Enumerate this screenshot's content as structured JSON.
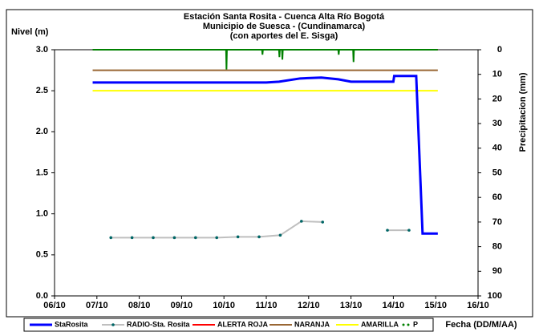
{
  "chart_data": {
    "type": "line",
    "title": [
      "Estación Santa Rosita - Cuenca Alta Río Bogotá",
      "Municipio de Suesca - (Cundinamarca)",
      "(con aportes del  E. Sisga)"
    ],
    "y_label": "Nivel (m)",
    "y2_label": "Precipitacion (mm)",
    "x_label": "Fecha (DD/M/AA)",
    "xlim": [
      0,
      10
    ],
    "xticks": [
      {
        "value": 0,
        "label": "06/10"
      },
      {
        "value": 1,
        "label": "07/10"
      },
      {
        "value": 2,
        "label": "08/10"
      },
      {
        "value": 3,
        "label": "09/10"
      },
      {
        "value": 4,
        "label": "10/10"
      },
      {
        "value": 5,
        "label": "11/10"
      },
      {
        "value": 6,
        "label": "12/10"
      },
      {
        "value": 7,
        "label": "13/10"
      },
      {
        "value": 8,
        "label": "14/10"
      },
      {
        "value": 9,
        "label": "15/10"
      },
      {
        "value": 10,
        "label": "16/10"
      }
    ],
    "ylim": [
      0,
      3
    ],
    "yticks": [
      {
        "value": 0,
        "label": "0.0"
      },
      {
        "value": 0.5,
        "label": "0.5"
      },
      {
        "value": 1,
        "label": "1.0"
      },
      {
        "value": 1.5,
        "label": "1.5"
      },
      {
        "value": 2,
        "label": "2.0"
      },
      {
        "value": 2.5,
        "label": "2.5"
      },
      {
        "value": 3,
        "label": "3.0"
      }
    ],
    "y2lim": [
      100,
      0
    ],
    "y2ticks": [
      0,
      10,
      20,
      30,
      40,
      50,
      60,
      70,
      80,
      90,
      100
    ],
    "series": [
      {
        "name": "StaRosita",
        "color": "#0000ff",
        "width": 3,
        "x": [
          0.9,
          5.0,
          5.3,
          5.8,
          6.3,
          6.7,
          7.0,
          8.0,
          8.02,
          8.54,
          8.69,
          9.05
        ],
        "values": [
          2.6,
          2.6,
          2.61,
          2.65,
          2.66,
          2.64,
          2.61,
          2.61,
          2.68,
          2.68,
          0.76,
          0.76
        ]
      },
      {
        "name": "RADIO-Sta. Rosita",
        "color": "#bfbfbf",
        "width": 2,
        "markers": true,
        "x": [
          1.33,
          1.83,
          2.33,
          2.83,
          3.33,
          3.83,
          4.33,
          4.83,
          5.33,
          5.83,
          6.33,
          null,
          7.86,
          8.37
        ],
        "values": [
          0.71,
          0.71,
          0.71,
          0.71,
          0.71,
          0.71,
          0.72,
          0.72,
          0.74,
          0.91,
          0.9,
          null,
          0.8,
          0.8
        ]
      },
      {
        "name": "ALERTA ROJA",
        "color": "#ff0000",
        "width": 2,
        "x": [
          0.9,
          9.05
        ],
        "values": [
          3,
          3
        ]
      },
      {
        "name": "NARANJA",
        "color": "#996633",
        "width": 2,
        "x": [
          0.9,
          9.05
        ],
        "values": [
          2.75,
          2.75
        ]
      },
      {
        "name": "AMARILLA",
        "color": "#ffff00",
        "width": 2,
        "x": [
          0.9,
          9.05
        ],
        "values": [
          2.5,
          2.5
        ]
      },
      {
        "name": "P",
        "color": "#008000",
        "width": 2,
        "axis": "y2",
        "x": [
          0.9,
          4.05,
          4.06,
          4.07,
          4.9,
          4.91,
          4.92,
          5.3,
          5.31,
          5.32,
          5.37,
          5.38,
          5.39,
          6.7,
          6.71,
          6.72,
          7.05,
          7.06,
          7.07,
          9.05
        ],
        "values": [
          0,
          0,
          8,
          0,
          0,
          2,
          0,
          0,
          3,
          0,
          0,
          4,
          0,
          0,
          2,
          0,
          0,
          5,
          0,
          0
        ]
      }
    ]
  }
}
